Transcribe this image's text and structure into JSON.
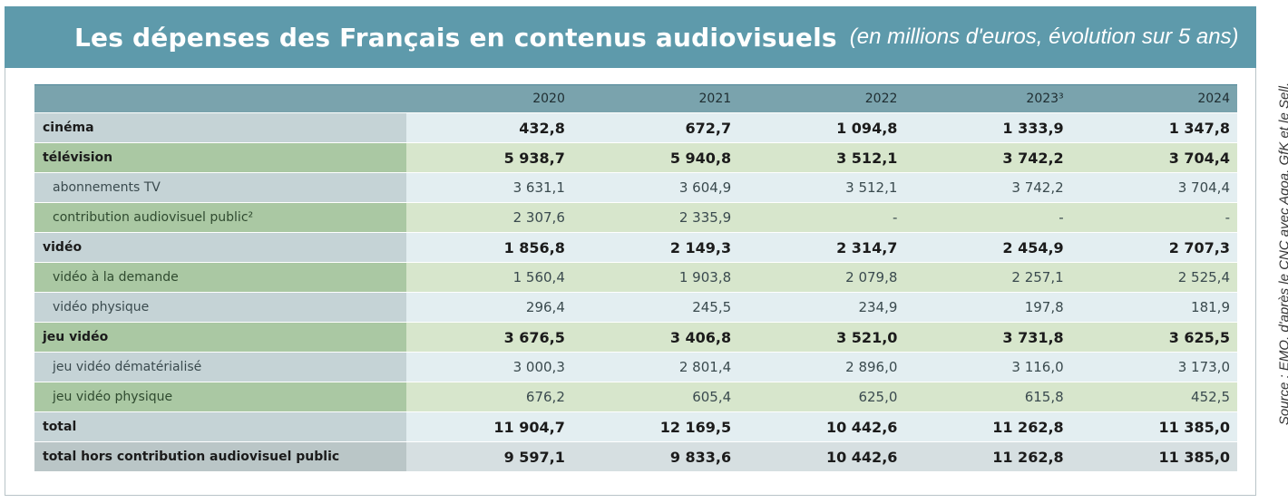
{
  "header": {
    "title": "Les dépenses des Français en contenus audiovisuels",
    "subtitle": "(en millions d'euros, évolution sur 5 ans)"
  },
  "source": "Source : EMQ, d'après le CNC avec Aqoa, GfK et le Sell.",
  "table": {
    "columns": [
      "2020",
      "2021",
      "2022",
      "2023³",
      "2024"
    ],
    "rows": [
      {
        "label": "cinéma",
        "values": [
          "432,8",
          "672,7",
          "1 094,8",
          "1 333,9",
          "1 347,8"
        ]
      },
      {
        "label": "télévision",
        "values": [
          "5 938,7",
          "5 940,8",
          "3 512,1",
          "3 742,2",
          "3 704,4"
        ]
      },
      {
        "label": "abonnements TV",
        "values": [
          "3 631,1",
          "3 604,9",
          "3 512,1",
          "3 742,2",
          "3 704,4"
        ]
      },
      {
        "label": "contribution audiovisuel public²",
        "values": [
          "2 307,6",
          "2 335,9",
          "-",
          "-",
          "-"
        ]
      },
      {
        "label": "vidéo",
        "values": [
          "1 856,8",
          "2 149,3",
          "2 314,7",
          "2 454,9",
          "2 707,3"
        ]
      },
      {
        "label": "vidéo à la demande",
        "values": [
          "1 560,4",
          "1 903,8",
          "2 079,8",
          "2 257,1",
          "2 525,4"
        ]
      },
      {
        "label": "vidéo physique",
        "values": [
          "296,4",
          "245,5",
          "234,9",
          "197,8",
          "181,9"
        ]
      },
      {
        "label": "jeu vidéo",
        "values": [
          "3 676,5",
          "3 406,8",
          "3 521,0",
          "3 731,8",
          "3 625,5"
        ]
      },
      {
        "label": "jeu vidéo dématérialisé",
        "values": [
          "3 000,3",
          "2 801,4",
          "2 896,0",
          "3 116,0",
          "3 173,0"
        ]
      },
      {
        "label": "jeu vidéo physique",
        "values": [
          "676,2",
          "605,4",
          "625,0",
          "615,8",
          "452,5"
        ]
      },
      {
        "label": "total",
        "values": [
          "11 904,7",
          "12 169,5",
          "10 442,6",
          "11 262,8",
          "11 385,0"
        ]
      },
      {
        "label": "total hors contribution audiovisuel public",
        "values": [
          "9 597,1",
          "9 833,6",
          "10 442,6",
          "11 262,8",
          "11 385,0"
        ]
      }
    ]
  },
  "colors": {
    "banner": "#5e9aab",
    "header_row": "#7aa3ad",
    "blue_row": "#e3eef1",
    "green_row": "#d7e6cc",
    "grey_row": "#d6dfe1"
  }
}
